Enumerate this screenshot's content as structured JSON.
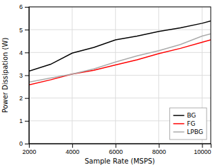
{
  "chart_data": {
    "type": "line",
    "xlabel": "Sample Rate (MSPS)",
    "ylabel": "Power Dissipation (W)",
    "x": [
      2000,
      3000,
      4000,
      5000,
      6000,
      7000,
      8000,
      9000,
      10000,
      10400
    ],
    "series": [
      {
        "name": "BG",
        "color": "#000000",
        "values": [
          3.18,
          3.48,
          3.97,
          4.22,
          4.55,
          4.72,
          4.92,
          5.08,
          5.28,
          5.38
        ]
      },
      {
        "name": "FG",
        "color": "#ff0000",
        "values": [
          2.58,
          2.8,
          3.05,
          3.22,
          3.45,
          3.68,
          3.95,
          4.18,
          4.45,
          4.55
        ]
      },
      {
        "name": "LPBG",
        "color": "#aaaaaa",
        "values": [
          2.7,
          2.88,
          3.05,
          3.28,
          3.58,
          3.85,
          4.08,
          4.35,
          4.72,
          4.82
        ]
      }
    ],
    "xlim": [
      2000,
      10400
    ],
    "ylim": [
      0,
      6
    ],
    "xticks": [
      2000,
      4000,
      6000,
      8000,
      10000
    ],
    "yticks": [
      0,
      1,
      2,
      3,
      4,
      5,
      6
    ],
    "grid": true,
    "legend": "lower right"
  }
}
